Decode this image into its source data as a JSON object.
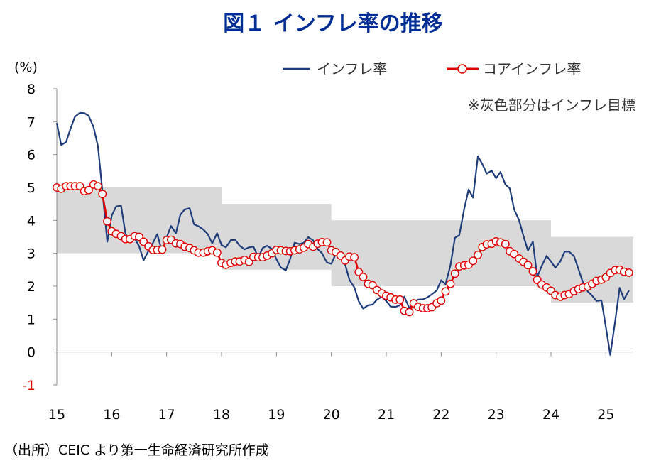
{
  "chart_data": {
    "type": "line",
    "title": "図１ インフレ率の推移",
    "ylabel": "(%)",
    "xlabel": "",
    "ylim": [
      -1,
      8
    ],
    "xlim": [
      2015.0,
      2025.5
    ],
    "y_ticks": [
      "8",
      "7",
      "6",
      "5",
      "4",
      "3",
      "2",
      "1",
      "0",
      "-1"
    ],
    "x_ticks": [
      "15",
      "16",
      "17",
      "18",
      "19",
      "20",
      "21",
      "22",
      "23",
      "24",
      "25"
    ],
    "note": "※灰色部分はインフレ目標",
    "source": "（出所）CEIC より第一生命経済研究所作成",
    "legend": [
      "インフレ率",
      "コアインフレ率"
    ],
    "colors": {
      "inflation": "#1F3D7A",
      "core": "#E00000",
      "target_band": "#D9D9D9"
    },
    "target_band": [
      {
        "x_start": 2015.0,
        "x_end": 2018.0,
        "low": 3.0,
        "high": 5.0
      },
      {
        "x_start": 2018.0,
        "x_end": 2020.0,
        "low": 2.5,
        "high": 4.5
      },
      {
        "x_start": 2020.0,
        "x_end": 2024.0,
        "low": 2.0,
        "high": 4.0
      },
      {
        "x_start": 2024.0,
        "x_end": 2025.5,
        "low": 1.5,
        "high": 3.5
      }
    ],
    "series": [
      {
        "name": "インフレ率",
        "x": [
          2015.0,
          2015.08,
          2015.17,
          2015.25,
          2015.33,
          2015.42,
          2015.5,
          2015.58,
          2015.67,
          2015.75,
          2015.83,
          2015.92,
          2016.0,
          2016.08,
          2016.17,
          2016.25,
          2016.33,
          2016.42,
          2016.5,
          2016.58,
          2016.67,
          2016.75,
          2016.83,
          2016.92,
          2017.0,
          2017.08,
          2017.17,
          2017.25,
          2017.33,
          2017.42,
          2017.5,
          2017.58,
          2017.67,
          2017.75,
          2017.83,
          2017.92,
          2018.0,
          2018.08,
          2018.17,
          2018.25,
          2018.33,
          2018.42,
          2018.5,
          2018.58,
          2018.67,
          2018.75,
          2018.83,
          2018.92,
          2019.0,
          2019.08,
          2019.17,
          2019.25,
          2019.33,
          2019.42,
          2019.5,
          2019.58,
          2019.67,
          2019.75,
          2019.83,
          2019.92,
          2020.0,
          2020.08,
          2020.17,
          2020.25,
          2020.33,
          2020.42,
          2020.5,
          2020.58,
          2020.67,
          2020.75,
          2020.83,
          2020.92,
          2021.0,
          2021.08,
          2021.17,
          2021.25,
          2021.33,
          2021.42,
          2021.5,
          2021.58,
          2021.67,
          2021.75,
          2021.83,
          2021.92,
          2022.0,
          2022.08,
          2022.17,
          2022.25,
          2022.33,
          2022.42,
          2022.5,
          2022.58,
          2022.67,
          2022.75,
          2022.83,
          2022.92,
          2023.0,
          2023.08,
          2023.17,
          2023.25,
          2023.33,
          2023.42,
          2023.5,
          2023.58,
          2023.67,
          2023.75,
          2023.83,
          2023.92,
          2024.0,
          2024.08,
          2024.17,
          2024.25,
          2024.33,
          2024.42,
          2024.5,
          2024.58,
          2024.67,
          2024.75,
          2024.83,
          2024.92,
          2025.0,
          2025.08,
          2025.17,
          2025.25,
          2025.33,
          2025.42
        ],
        "values": [
          6.96,
          6.29,
          6.38,
          6.79,
          7.15,
          7.27,
          7.26,
          7.18,
          6.83,
          6.25,
          4.89,
          3.35,
          4.14,
          4.42,
          4.45,
          3.6,
          3.33,
          3.45,
          3.21,
          2.79,
          3.07,
          3.31,
          3.58,
          3.02,
          3.49,
          3.83,
          3.61,
          4.17,
          4.33,
          4.37,
          3.88,
          3.82,
          3.72,
          3.58,
          3.3,
          3.61,
          3.25,
          3.18,
          3.4,
          3.41,
          3.23,
          3.12,
          3.18,
          3.2,
          2.88,
          3.16,
          3.23,
          3.13,
          2.82,
          2.57,
          2.48,
          2.83,
          3.32,
          3.28,
          3.32,
          3.49,
          3.39,
          3.13,
          3.0,
          2.72,
          2.68,
          2.98,
          2.96,
          2.67,
          2.19,
          1.96,
          1.54,
          1.32,
          1.42,
          1.44,
          1.59,
          1.68,
          1.55,
          1.38,
          1.37,
          1.42,
          1.68,
          1.33,
          1.52,
          1.59,
          1.6,
          1.66,
          1.75,
          1.87,
          2.18,
          2.06,
          2.64,
          3.47,
          3.55,
          4.35,
          4.94,
          4.69,
          5.95,
          5.71,
          5.42,
          5.51,
          5.28,
          5.47,
          5.09,
          4.97,
          4.33,
          4.0,
          3.52,
          3.08,
          3.35,
          2.28,
          2.61,
          2.92,
          2.75,
          2.56,
          2.75,
          3.05,
          3.05,
          2.91,
          2.52,
          2.12,
          1.84,
          1.71,
          1.55,
          1.57,
          0.76,
          -0.09,
          0.95,
          1.95,
          1.6,
          1.87
        ]
      },
      {
        "name": "コアインフレ率",
        "x": [
          2015.0,
          2015.08,
          2015.17,
          2015.25,
          2015.33,
          2015.42,
          2015.5,
          2015.58,
          2015.67,
          2015.75,
          2015.83,
          2015.92,
          2016.0,
          2016.08,
          2016.17,
          2016.25,
          2016.33,
          2016.42,
          2016.5,
          2016.58,
          2016.67,
          2016.75,
          2016.83,
          2016.92,
          2017.0,
          2017.08,
          2017.17,
          2017.25,
          2017.33,
          2017.42,
          2017.5,
          2017.58,
          2017.67,
          2017.75,
          2017.83,
          2017.92,
          2018.0,
          2018.08,
          2018.17,
          2018.25,
          2018.33,
          2018.42,
          2018.5,
          2018.58,
          2018.67,
          2018.75,
          2018.83,
          2018.92,
          2019.0,
          2019.08,
          2019.17,
          2019.25,
          2019.33,
          2019.42,
          2019.5,
          2019.58,
          2019.67,
          2019.75,
          2019.83,
          2019.92,
          2020.0,
          2020.08,
          2020.17,
          2020.25,
          2020.33,
          2020.42,
          2020.5,
          2020.58,
          2020.67,
          2020.75,
          2020.83,
          2020.92,
          2021.0,
          2021.08,
          2021.17,
          2021.25,
          2021.33,
          2021.42,
          2021.5,
          2021.58,
          2021.67,
          2021.75,
          2021.83,
          2021.92,
          2022.0,
          2022.08,
          2022.17,
          2022.25,
          2022.33,
          2022.42,
          2022.5,
          2022.58,
          2022.67,
          2022.75,
          2022.83,
          2022.92,
          2023.0,
          2023.08,
          2023.17,
          2023.25,
          2023.33,
          2023.42,
          2023.5,
          2023.58,
          2023.67,
          2023.75,
          2023.83,
          2023.92,
          2024.0,
          2024.08,
          2024.17,
          2024.25,
          2024.33,
          2024.42,
          2024.5,
          2024.58,
          2024.67,
          2024.75,
          2024.83,
          2024.92,
          2025.0,
          2025.08,
          2025.17,
          2025.25,
          2025.33,
          2025.42
        ],
        "values": [
          5.0,
          4.96,
          5.04,
          5.04,
          5.04,
          5.04,
          4.89,
          4.92,
          5.09,
          5.04,
          4.8,
          3.97,
          3.67,
          3.59,
          3.52,
          3.43,
          3.43,
          3.52,
          3.5,
          3.35,
          3.21,
          3.1,
          3.1,
          3.11,
          3.4,
          3.41,
          3.3,
          3.28,
          3.2,
          3.16,
          3.09,
          3.02,
          3.02,
          3.06,
          3.09,
          3.02,
          2.71,
          2.65,
          2.71,
          2.75,
          2.75,
          2.8,
          2.74,
          2.89,
          2.88,
          2.88,
          2.93,
          3.0,
          3.1,
          3.09,
          3.07,
          3.06,
          3.09,
          3.12,
          3.17,
          3.28,
          3.2,
          3.29,
          3.34,
          3.33,
          3.09,
          3.04,
          2.93,
          2.78,
          2.9,
          2.88,
          2.43,
          2.28,
          2.07,
          2.03,
          1.88,
          1.78,
          1.71,
          1.66,
          1.59,
          1.59,
          1.25,
          1.21,
          1.48,
          1.37,
          1.33,
          1.33,
          1.36,
          1.48,
          1.56,
          1.84,
          2.07,
          2.38,
          2.6,
          2.63,
          2.65,
          2.77,
          2.95,
          3.19,
          3.27,
          3.29,
          3.36,
          3.33,
          3.28,
          3.06,
          2.98,
          2.84,
          2.74,
          2.64,
          2.45,
          2.19,
          2.05,
          1.96,
          1.86,
          1.73,
          1.68,
          1.73,
          1.76,
          1.85,
          1.91,
          1.96,
          1.99,
          2.07,
          2.16,
          2.2,
          2.27,
          2.4,
          2.49,
          2.5,
          2.44,
          2.41
        ]
      }
    ]
  }
}
